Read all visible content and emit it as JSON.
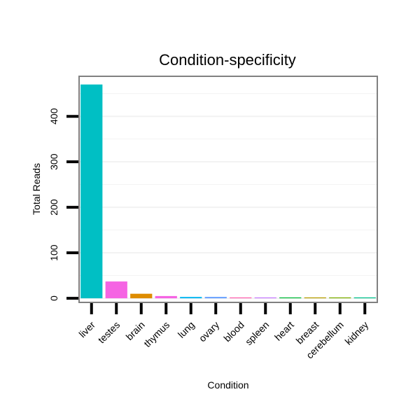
{
  "chart_data": {
    "type": "bar",
    "title": "Condition-specificity",
    "xlabel": "Condition",
    "ylabel": "Total Reads",
    "ylim": [
      -9,
      488
    ],
    "yticks": [
      0,
      100,
      200,
      300,
      400
    ],
    "grid": true,
    "legend": "none",
    "categories": [
      "liver",
      "testes",
      "brain",
      "thymus",
      "lung",
      "ovary",
      "blood",
      "spleen",
      "heart",
      "breast",
      "cerebellum",
      "kidney"
    ],
    "values": [
      470,
      37,
      10,
      5,
      3,
      3,
      2,
      2,
      2,
      2,
      2,
      2
    ],
    "colors": [
      "#00BFC4",
      "#F564E3",
      "#DE8C00",
      "#F564E3",
      "#00B4F0",
      "#619CFF",
      "#FF64B0",
      "#C77CFF",
      "#00BA38",
      "#B79F00",
      "#7CAE00",
      "#00C08B"
    ]
  }
}
